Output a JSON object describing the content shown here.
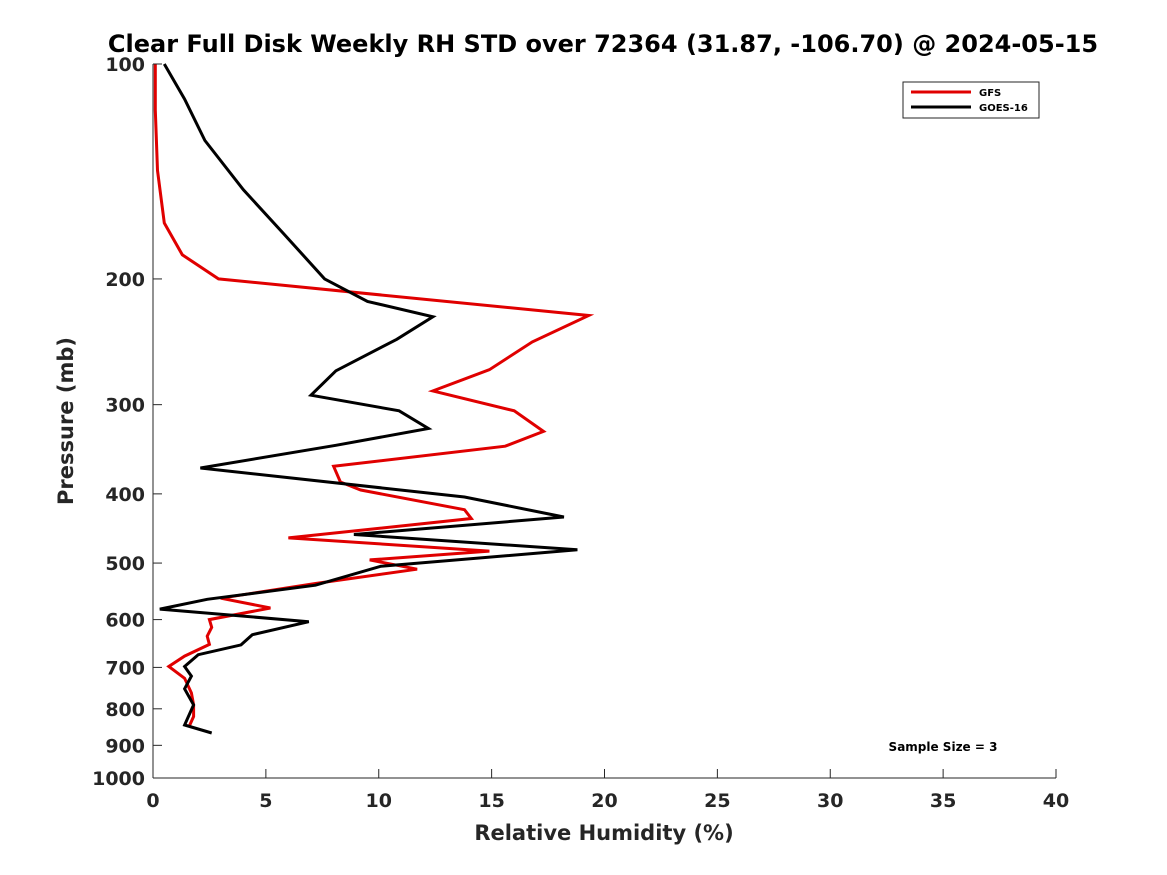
{
  "chart_data": {
    "type": "line",
    "title": "Clear Full Disk Weekly RH STD over 72364 (31.87, -106.70) @ 2024-05-15",
    "xlabel": "Relative Humidity (%)",
    "ylabel": "Pressure (mb)",
    "xlim": [
      0,
      40
    ],
    "ylim": [
      100,
      1000
    ],
    "y_scale": "log",
    "y_reversed": true,
    "x_ticks": [
      "0",
      "5",
      "10",
      "15",
      "20",
      "25",
      "30",
      "35",
      "40"
    ],
    "y_ticks": [
      "100",
      "200",
      "300",
      "400",
      "500",
      "600",
      "700",
      "800",
      "900",
      "1000"
    ],
    "grid": false,
    "legend_position": "top-right",
    "annotation": "Sample Size = 3",
    "series": [
      {
        "name": "GFS",
        "color": "#e00000",
        "x": [
          0.1,
          0.1,
          0.2,
          0.5,
          1.3,
          2.9,
          19.3,
          16.8,
          14.9,
          12.4,
          16.0,
          17.3,
          15.6,
          8.0,
          8.3,
          9.2,
          13.8,
          14.1,
          6.0,
          14.9,
          9.6,
          11.7,
          7.2,
          3.0,
          5.2,
          2.5,
          2.6,
          2.4,
          2.5,
          1.4,
          0.7,
          1.4,
          1.7,
          1.8,
          1.8,
          1.6
        ],
        "y": [
          100,
          116,
          141,
          167,
          185,
          200,
          225,
          245,
          268,
          287,
          306,
          327,
          343,
          366,
          385,
          395,
          421,
          433,
          461,
          481,
          495,
          510,
          534,
          560,
          578,
          600,
          615,
          633,
          650,
          675,
          698,
          725,
          760,
          790,
          820,
          847
        ]
      },
      {
        "name": "GOES-16",
        "color": "#000000",
        "x": [
          0.5,
          1.4,
          2.3,
          4.0,
          5.8,
          7.6,
          9.5,
          12.4,
          10.8,
          8.1,
          7.0,
          10.9,
          12.2,
          8.1,
          2.1,
          13.8,
          18.2,
          8.9,
          18.8,
          10.1,
          7.2,
          2.4,
          0.3,
          6.9,
          4.4,
          3.9,
          2.0,
          1.4,
          1.7,
          1.4,
          1.8,
          1.4,
          2.6
        ],
        "y": [
          100,
          112,
          128,
          150,
          173,
          200,
          215,
          226,
          243,
          269,
          291,
          306,
          324,
          342,
          368,
          404,
          431,
          456,
          479,
          505,
          537,
          562,
          580,
          604,
          630,
          651,
          672,
          698,
          720,
          750,
          790,
          843,
          865
        ]
      }
    ]
  }
}
